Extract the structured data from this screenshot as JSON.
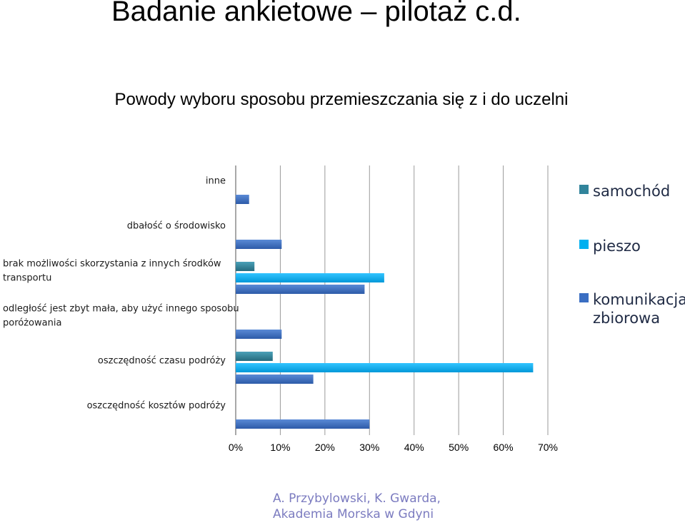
{
  "slide": {
    "title": "Badanie ankietowe – pilotaż c.d.",
    "footer_line1": "A.  Przybylowski, K. Gwarda,",
    "footer_line2": "Akademia Morska w Gdyni"
  },
  "chart_data": {
    "type": "bar",
    "orientation": "horizontal",
    "title": "Powody wyboru sposobu  przemieszczania się z i do uczelni",
    "categories": [
      "inne",
      "dbałość o środowisko",
      "brak możliwości skorzystania z innych środków transportu",
      "odległość jest zbyt mała, aby użyć innego sposobu poróżowania",
      "oszczędność czasu podróży",
      "oszczędność kosztów podróży"
    ],
    "category_label_lines": [
      [
        "inne"
      ],
      [
        "dbałość o środowisko"
      ],
      [
        "brak możliwości skorzystania z innych środków",
        "transportu"
      ],
      [
        "odległość jest zbyt mała, aby użyć innego sposobu",
        "poróżowania"
      ],
      [
        "oszczędność czasu podróży"
      ],
      [
        "oszczędność kosztów podróży"
      ]
    ],
    "series": [
      {
        "name": "samochód",
        "color": "#31849b",
        "values": [
          0,
          0,
          4.2,
          0,
          8.3,
          0
        ]
      },
      {
        "name": "pieszo",
        "color": "#00b0f0",
        "values": [
          0,
          0,
          33.3,
          0,
          66.7,
          0
        ]
      },
      {
        "name": "komunikacja zbiorowa",
        "color": "#3a6ec2",
        "values": [
          3.0,
          10.3,
          28.9,
          10.3,
          17.4,
          30.0
        ]
      }
    ],
    "x_ticks": [
      "0%",
      "10%",
      "20%",
      "30%",
      "40%",
      "50%",
      "60%",
      "70%"
    ],
    "xlim": [
      0,
      70
    ],
    "x_unit": "%",
    "grid": "vertical",
    "legend_position": "right"
  }
}
